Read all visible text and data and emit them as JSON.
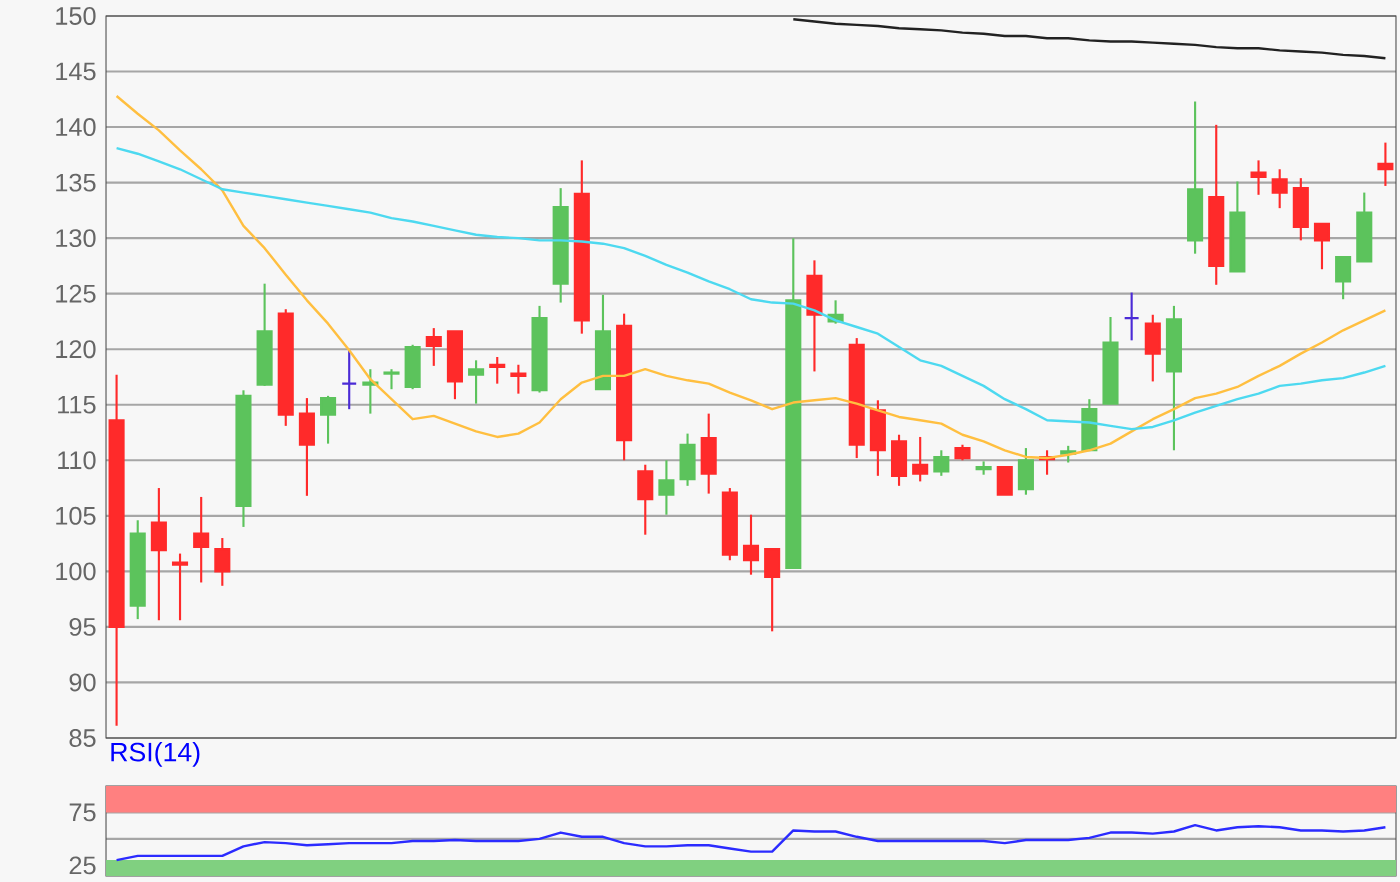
{
  "chart_data": [
    {
      "type": "candlestick",
      "categories": [
        null,
        null,
        null,
        null,
        null,
        null,
        null,
        null,
        null,
        null,
        null,
        null,
        null,
        null,
        null,
        null,
        null,
        null,
        null,
        null,
        null,
        null,
        null,
        null,
        null,
        null,
        null,
        null,
        null,
        null,
        null,
        null,
        null,
        null,
        null,
        null,
        null,
        null,
        null,
        null,
        null,
        null,
        null,
        null,
        null,
        null,
        null,
        null,
        null,
        null,
        null,
        null,
        null,
        null,
        null,
        null,
        null,
        null,
        null,
        null,
        null
      ],
      "ohlc": [
        [
          113.6,
          117.7,
          86.1,
          95.0
        ],
        [
          96.9,
          104.6,
          95.7,
          103.4
        ],
        [
          104.4,
          107.5,
          95.6,
          101.9
        ],
        [
          100.8,
          101.6,
          95.6,
          100.6
        ],
        [
          103.4,
          106.7,
          99.0,
          102.2
        ],
        [
          102.0,
          103.0,
          98.7,
          100.0
        ],
        [
          105.9,
          116.3,
          104.0,
          115.8
        ],
        [
          116.8,
          125.9,
          116.7,
          121.6
        ],
        [
          123.2,
          123.6,
          113.1,
          114.1
        ],
        [
          114.2,
          115.6,
          106.8,
          111.4
        ],
        [
          114.1,
          115.8,
          111.5,
          115.6
        ],
        [
          116.9,
          119.9,
          114.6,
          116.9
        ],
        [
          116.8,
          118.2,
          114.2,
          117.0
        ],
        [
          117.8,
          118.2,
          116.4,
          117.9
        ],
        [
          116.6,
          120.4,
          116.4,
          120.2
        ],
        [
          121.1,
          121.9,
          118.5,
          120.3
        ],
        [
          121.6,
          121.6,
          115.5,
          117.1
        ],
        [
          117.7,
          119.0,
          115.1,
          118.2
        ],
        [
          118.6,
          119.3,
          116.9,
          118.4
        ],
        [
          117.8,
          118.6,
          116.0,
          117.6
        ],
        [
          116.3,
          123.9,
          116.1,
          122.8
        ],
        [
          125.9,
          134.5,
          124.2,
          132.8
        ],
        [
          134.0,
          137.0,
          121.4,
          122.6
        ],
        [
          116.4,
          124.9,
          116.4,
          121.6
        ],
        [
          122.1,
          123.2,
          110.0,
          111.8
        ],
        [
          109.0,
          109.6,
          103.3,
          106.5
        ],
        [
          106.9,
          110.0,
          105.1,
          108.2
        ],
        [
          108.3,
          112.4,
          107.7,
          111.4
        ],
        [
          112.0,
          114.2,
          107.0,
          108.8
        ],
        [
          107.1,
          107.5,
          101.0,
          101.5
        ],
        [
          102.3,
          105.1,
          99.7,
          101.0
        ],
        [
          102.0,
          102.0,
          94.6,
          99.5
        ],
        [
          100.3,
          130.0,
          100.3,
          124.4
        ],
        [
          126.6,
          128.0,
          118.0,
          123.1
        ],
        [
          122.5,
          124.4,
          122.3,
          123.1
        ],
        [
          120.4,
          121.0,
          110.2,
          111.4
        ],
        [
          114.5,
          115.4,
          108.6,
          110.9
        ],
        [
          111.7,
          112.3,
          107.7,
          108.6
        ],
        [
          109.6,
          112.1,
          108.1,
          108.8
        ],
        [
          109.0,
          110.9,
          108.6,
          110.3
        ],
        [
          111.1,
          111.4,
          110.0,
          110.2
        ],
        [
          109.2,
          109.9,
          108.7,
          109.4
        ],
        [
          109.4,
          109.4,
          106.9,
          106.9
        ],
        [
          107.4,
          111.1,
          106.9,
          110.0
        ],
        [
          110.3,
          110.9,
          108.7,
          110.1
        ],
        [
          110.6,
          111.3,
          109.8,
          110.8
        ],
        [
          110.9,
          115.5,
          110.9,
          114.6
        ],
        [
          115.1,
          122.9,
          115.1,
          120.6
        ],
        [
          122.8,
          125.1,
          120.8,
          122.8
        ],
        [
          122.3,
          123.1,
          117.1,
          119.6
        ],
        [
          118.0,
          123.9,
          110.9,
          122.7
        ],
        [
          129.8,
          142.3,
          128.6,
          134.4
        ],
        [
          133.7,
          140.2,
          125.8,
          127.5
        ],
        [
          127.0,
          135.1,
          127.0,
          132.3
        ],
        [
          135.9,
          137.0,
          133.9,
          135.5
        ],
        [
          135.3,
          136.2,
          132.7,
          134.1
        ],
        [
          134.5,
          135.4,
          129.8,
          131.0
        ],
        [
          131.3,
          131.3,
          127.2,
          129.8
        ],
        [
          126.1,
          128.3,
          124.5,
          128.3
        ],
        [
          127.9,
          134.1,
          127.9,
          132.3
        ],
        [
          136.7,
          138.6,
          134.7,
          136.2
        ]
      ],
      "colors": [
        "#ff2a2a",
        "#5cc35c",
        "#ff2a2a",
        "#ff2a2a",
        "#ff2a2a",
        "#ff2a2a",
        "#5cc35c",
        "#5cc35c",
        "#ff2a2a",
        "#ff2a2a",
        "#5cc35c",
        "#4b2bd6",
        "#5cc35c",
        "#5cc35c",
        "#5cc35c",
        "#ff2a2a",
        "#ff2a2a",
        "#5cc35c",
        "#ff2a2a",
        "#ff2a2a",
        "#5cc35c",
        "#5cc35c",
        "#ff2a2a",
        "#5cc35c",
        "#ff2a2a",
        "#ff2a2a",
        "#5cc35c",
        "#5cc35c",
        "#ff2a2a",
        "#ff2a2a",
        "#ff2a2a",
        "#ff2a2a",
        "#5cc35c",
        "#ff2a2a",
        "#5cc35c",
        "#ff2a2a",
        "#ff2a2a",
        "#ff2a2a",
        "#ff2a2a",
        "#5cc35c",
        "#ff2a2a",
        "#5cc35c",
        "#ff2a2a",
        "#5cc35c",
        "#ff2a2a",
        "#5cc35c",
        "#5cc35c",
        "#5cc35c",
        "#4b2bd6",
        "#ff2a2a",
        "#5cc35c",
        "#5cc35c",
        "#ff2a2a",
        "#5cc35c",
        "#ff2a2a",
        "#ff2a2a",
        "#ff2a2a",
        "#ff2a2a",
        "#5cc35c",
        "#5cc35c",
        "#ff2a2a"
      ],
      "series": [
        {
          "type": "line",
          "color": "#ffbf40",
          "values": [
            142.8,
            141.2,
            139.7,
            137.9,
            136.2,
            134.3,
            131.1,
            129.1,
            126.7,
            124.4,
            122.3,
            119.9,
            117.3,
            115.5,
            113.7,
            114.0,
            113.3,
            112.6,
            112.1,
            112.4,
            113.4,
            115.5,
            117.0,
            117.6,
            117.6,
            118.2,
            117.6,
            117.2,
            116.9,
            116.1,
            115.4,
            114.6,
            115.2,
            115.4,
            115.6,
            115.1,
            114.5,
            113.9,
            113.6,
            113.3,
            112.3,
            111.7,
            110.9,
            110.3,
            110.2,
            110.5,
            110.9,
            111.5,
            112.6,
            113.7,
            114.6,
            115.6,
            116.0,
            116.6,
            117.6,
            118.5,
            119.6,
            120.6,
            121.7,
            122.6,
            123.5
          ]
        },
        {
          "type": "line",
          "color": "#4dd9f0",
          "values": [
            138.1,
            137.6,
            136.9,
            136.2,
            135.3,
            134.4,
            134.1,
            133.8,
            133.5,
            133.2,
            132.9,
            132.6,
            132.3,
            131.8,
            131.5,
            131.1,
            130.7,
            130.3,
            130.1,
            130.0,
            129.8,
            129.8,
            129.7,
            129.5,
            129.1,
            128.4,
            127.6,
            126.9,
            126.1,
            125.4,
            124.5,
            124.2,
            124.1,
            123.5,
            122.6,
            122.0,
            121.4,
            120.2,
            119.0,
            118.5,
            117.6,
            116.7,
            115.5,
            114.6,
            113.6,
            113.5,
            113.4,
            113.1,
            112.8,
            113.0,
            113.6,
            114.3,
            114.9,
            115.5,
            116.0,
            116.7,
            116.9,
            117.2,
            117.4,
            117.9,
            118.5
          ]
        },
        {
          "type": "line",
          "color": "#222222",
          "values": [
            null,
            null,
            null,
            null,
            null,
            null,
            null,
            null,
            null,
            null,
            null,
            null,
            null,
            null,
            null,
            null,
            null,
            null,
            null,
            null,
            null,
            null,
            null,
            null,
            null,
            null,
            null,
            null,
            null,
            null,
            null,
            null,
            149.7,
            149.5,
            149.3,
            149.2,
            149.1,
            148.9,
            148.8,
            148.7,
            148.5,
            148.4,
            148.2,
            148.2,
            148.0,
            148.0,
            147.8,
            147.7,
            147.7,
            147.6,
            147.5,
            147.4,
            147.2,
            147.1,
            147.1,
            146.9,
            146.8,
            146.7,
            146.5,
            146.4,
            146.2
          ]
        }
      ],
      "ylim": [
        85,
        150
      ],
      "yticks": [
        85,
        90,
        95,
        100,
        105,
        110,
        115,
        120,
        125,
        130,
        135,
        140,
        145,
        150
      ],
      "grid": "y",
      "tick_labels": "y"
    },
    {
      "type": "line",
      "title": "RSI(14)",
      "categories": [
        null,
        null,
        null,
        null,
        null,
        null,
        null,
        null,
        null,
        null,
        null,
        null,
        null,
        null,
        null,
        null,
        null,
        null,
        null,
        null,
        null,
        null,
        null,
        null,
        null,
        null,
        null,
        null,
        null,
        null,
        null,
        null,
        null,
        null,
        null,
        null,
        null,
        null,
        null,
        null,
        null,
        null,
        null,
        null,
        null,
        null,
        null,
        null,
        null,
        null,
        null,
        null,
        null,
        null,
        null,
        null,
        null,
        null,
        null,
        null,
        null
      ],
      "series": [
        {
          "color": "#2b2bff",
          "values": [
            30,
            34,
            34,
            34,
            34,
            34,
            43,
            47,
            46,
            44,
            45,
            46,
            46,
            46,
            48,
            48,
            49,
            48,
            48,
            48,
            50,
            56,
            52,
            52,
            46,
            43,
            43,
            44,
            44,
            41,
            38,
            38,
            58,
            57,
            57,
            52,
            48,
            48,
            48,
            48,
            48,
            48,
            46,
            49,
            49,
            49,
            51,
            56,
            56,
            55,
            57,
            63,
            58,
            61,
            62,
            61,
            58,
            58,
            57,
            58,
            61
          ]
        }
      ],
      "ylim": [
        15,
        100
      ],
      "yticks": [
        25,
        {
          "value": 50,
          "label": null
        },
        75
      ],
      "grid": "y",
      "tick_labels": "y",
      "bands": [
        {
          "axis": "y",
          "from": 75,
          "to": 100,
          "color": "#ff8080"
        },
        {
          "axis": "y",
          "from": 15,
          "to": 30,
          "color": "#80d080"
        }
      ]
    }
  ]
}
